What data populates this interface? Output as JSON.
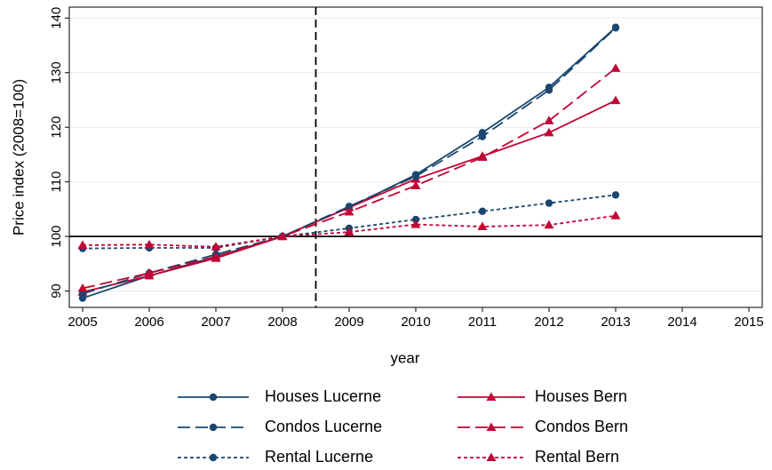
{
  "chart_data": {
    "type": "line",
    "x_label": "year",
    "y_label": "Price index (2008=100)",
    "x": [
      2005,
      2006,
      2007,
      2008,
      2009,
      2010,
      2011,
      2012,
      2013
    ],
    "series": [
      {
        "name": "Houses Lucerne",
        "color": "#1a476f",
        "dash": "solid",
        "marker": "circle",
        "values": [
          88.7,
          92.8,
          96.3,
          100,
          105.3,
          111.3,
          119,
          127.3,
          138.3
        ]
      },
      {
        "name": "Houses Bern",
        "color": "#c10534",
        "dash": "solid",
        "marker": "triangle",
        "values": [
          89.8,
          92.8,
          96.0,
          100,
          105.3,
          110.5,
          114.7,
          119,
          124.9
        ]
      },
      {
        "name": "Condos Lucerne",
        "color": "#1a476f",
        "dash": "long",
        "marker": "circle",
        "values": [
          89.5,
          93.3,
          96.7,
          100,
          105.5,
          111,
          118.3,
          126.8,
          138.2
        ]
      },
      {
        "name": "Condos Bern",
        "color": "#c10534",
        "dash": "long",
        "marker": "triangle",
        "values": [
          90.5,
          93.3,
          96.3,
          100,
          104.5,
          109.3,
          114.5,
          121.2,
          130.8
        ]
      },
      {
        "name": "Rental Lucerne",
        "color": "#1a476f",
        "dash": "short",
        "marker": "circle",
        "values": [
          97.8,
          97.9,
          97.9,
          100,
          101.5,
          103.1,
          104.6,
          106.1,
          107.6
        ]
      },
      {
        "name": "Rental Bern",
        "color": "#c10534",
        "dash": "short",
        "marker": "triangle",
        "values": [
          98.4,
          98.5,
          98.1,
          100,
          100.8,
          102.2,
          101.8,
          102.1,
          103.8
        ]
      }
    ],
    "xlim": [
      2004.8,
      2015.2
    ],
    "xticks": [
      2005,
      2006,
      2007,
      2008,
      2009,
      2010,
      2011,
      2012,
      2013,
      2014,
      2015
    ],
    "ylim": [
      87,
      142
    ],
    "yticks": [
      90,
      100,
      110,
      120,
      130,
      140
    ],
    "grid": true,
    "reference_lines": {
      "x": 2008.5,
      "y": 100
    },
    "legend": "bottom"
  }
}
